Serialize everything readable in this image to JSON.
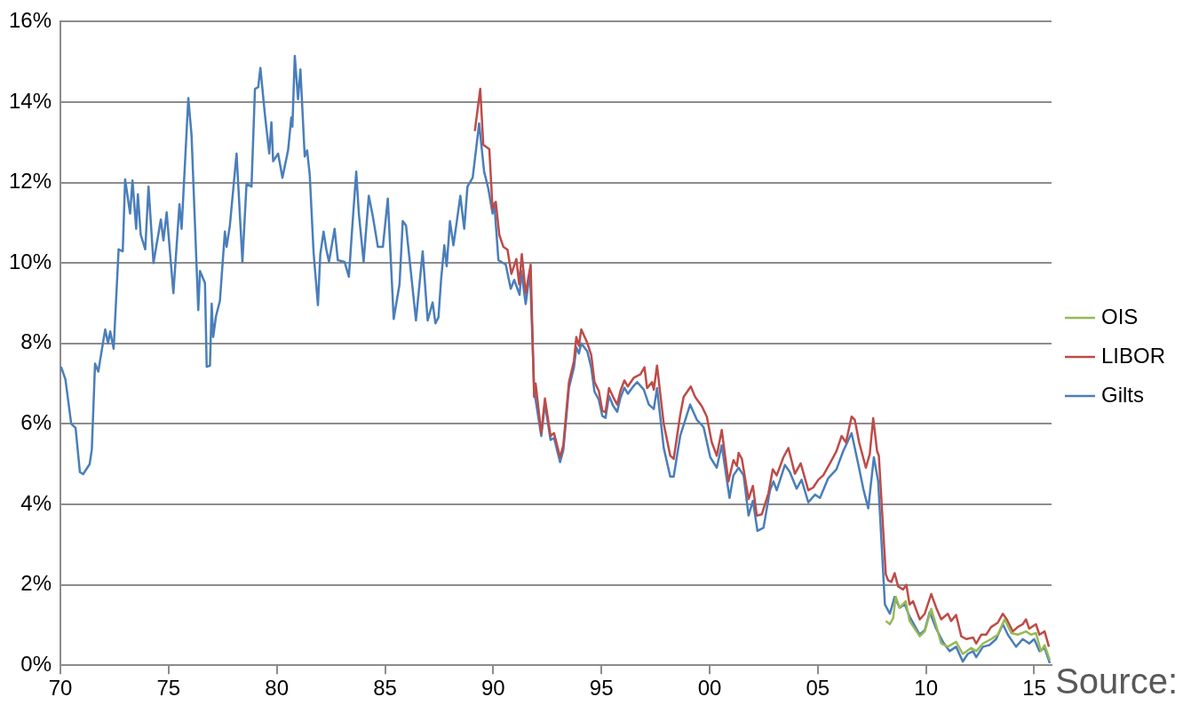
{
  "chart_data": {
    "type": "line",
    "xlim": [
      1970,
      2015.8
    ],
    "xticks": [
      {
        "value": 1970,
        "label": "70"
      },
      {
        "value": 1975,
        "label": "75"
      },
      {
        "value": 1980,
        "label": "80"
      },
      {
        "value": 1985,
        "label": "85"
      },
      {
        "value": 1990,
        "label": "90"
      },
      {
        "value": 1995,
        "label": "95"
      },
      {
        "value": 2000,
        "label": "00"
      },
      {
        "value": 2005,
        "label": "05"
      },
      {
        "value": 2010,
        "label": "10"
      },
      {
        "value": 2015,
        "label": "15"
      }
    ],
    "ylim": [
      0,
      16
    ],
    "yticks": [
      {
        "value": 0,
        "label": "0%"
      },
      {
        "value": 2,
        "label": "2%"
      },
      {
        "value": 4,
        "label": "4%"
      },
      {
        "value": 6,
        "label": "6%"
      },
      {
        "value": 8,
        "label": "8%"
      },
      {
        "value": 10,
        "label": "10%"
      },
      {
        "value": 12,
        "label": "12%"
      },
      {
        "value": 14,
        "label": "14%"
      },
      {
        "value": 16,
        "label": "16%"
      }
    ],
    "grid": "y",
    "legend": "right",
    "marker": "none",
    "line_style": "solid",
    "annotations": [
      "Source:"
    ],
    "series": [
      {
        "name": "Gilts",
        "color": "#4a7ebb",
        "x": [
          1970.03,
          1970.23,
          1970.5,
          1970.7,
          1970.9,
          1971.05,
          1971.35,
          1971.45,
          1971.6,
          1971.75,
          1971.9,
          1972.07,
          1972.2,
          1972.3,
          1972.46,
          1972.69,
          1972.88,
          1972.99,
          1973.22,
          1973.33,
          1973.5,
          1973.58,
          1973.71,
          1973.92,
          1974.07,
          1974.3,
          1974.64,
          1974.76,
          1974.91,
          1975.22,
          1975.5,
          1975.6,
          1975.91,
          1976.06,
          1976.37,
          1976.45,
          1976.68,
          1976.76,
          1976.91,
          1976.99,
          1977.06,
          1977.19,
          1977.37,
          1977.6,
          1977.68,
          1977.83,
          1978.14,
          1978.41,
          1978.6,
          1978.83,
          1978.99,
          1979.14,
          1979.24,
          1979.45,
          1979.65,
          1979.75,
          1979.83,
          1980.06,
          1980.26,
          1980.52,
          1980.67,
          1980.72,
          1980.83,
          1980.98,
          1981.09,
          1981.29,
          1981.4,
          1981.52,
          1981.7,
          1981.9,
          1982.01,
          1982.16,
          1982.29,
          1982.41,
          1982.67,
          1982.82,
          1983.13,
          1983.33,
          1983.52,
          1983.67,
          1983.79,
          1984.01,
          1984.25,
          1984.44,
          1984.67,
          1984.9,
          1985.13,
          1985.4,
          1985.67,
          1985.82,
          1985.97,
          1986.43,
          1986.74,
          1986.97,
          1987.2,
          1987.33,
          1987.47,
          1987.59,
          1987.74,
          1987.85,
          1988.0,
          1988.16,
          1988.28,
          1988.48,
          1988.66,
          1988.81,
          1989.05,
          1989.35,
          1989.58,
          1989.77,
          1989.97,
          1990.05,
          1990.24,
          1990.58,
          1990.81,
          1990.97,
          1991.22,
          1991.3,
          1991.5,
          1991.7,
          1991.89,
          1991.96,
          1992.22,
          1992.39,
          1992.65,
          1992.81,
          1993.09,
          1993.24,
          1993.5,
          1993.73,
          1993.84,
          1993.96,
          1994.07,
          1994.35,
          1994.53,
          1994.68,
          1994.88,
          1995.04,
          1995.19,
          1995.35,
          1995.54,
          1995.73,
          1995.88,
          1996.06,
          1996.22,
          1996.5,
          1996.65,
          1996.96,
          1997.19,
          1997.42,
          1997.57,
          1997.88,
          1998.18,
          1998.34,
          1998.64,
          1999.1,
          1999.41,
          1999.72,
          2000.03,
          2000.33,
          2000.56,
          2000.92,
          2001.1,
          2001.34,
          2001.57,
          2001.8,
          2002.0,
          2002.21,
          2002.49,
          2002.79,
          2002.95,
          2003.1,
          2003.48,
          2003.71,
          2004.02,
          2004.25,
          2004.56,
          2004.87,
          2005.1,
          2005.48,
          2005.86,
          2006.17,
          2006.56,
          2006.86,
          2007.1,
          2007.33,
          2007.59,
          2007.79,
          2008.1,
          2008.33,
          2008.55,
          2008.78,
          2009.02,
          2009.24,
          2009.47,
          2009.71,
          2009.94,
          2010.17,
          2010.47,
          2010.78,
          2011.09,
          2011.39,
          2011.7,
          2011.93,
          2012.17,
          2012.32,
          2012.63,
          2012.93,
          2013.24,
          2013.55,
          2013.78,
          2014.16,
          2014.47,
          2014.77,
          2015.0,
          2015.24,
          2015.48,
          2015.72
        ],
        "values": [
          7.42,
          7.11,
          6.0,
          5.9,
          4.8,
          4.75,
          5.0,
          5.36,
          7.5,
          7.3,
          7.8,
          8.35,
          8.0,
          8.3,
          7.87,
          10.34,
          10.29,
          12.08,
          11.23,
          12.05,
          10.85,
          11.71,
          10.7,
          10.34,
          11.9,
          10.0,
          11.08,
          10.56,
          11.26,
          9.25,
          11.46,
          10.85,
          14.1,
          13.17,
          8.83,
          9.8,
          9.5,
          7.42,
          7.45,
          8.99,
          8.16,
          8.68,
          9.06,
          10.78,
          10.4,
          10.93,
          12.72,
          10.03,
          11.97,
          11.9,
          14.33,
          14.37,
          14.85,
          13.69,
          12.72,
          13.5,
          12.53,
          12.72,
          12.12,
          12.8,
          13.62,
          13.39,
          15.15,
          14.07,
          14.81,
          12.65,
          12.8,
          12.2,
          10.25,
          8.95,
          10.22,
          10.78,
          10.33,
          10.03,
          10.85,
          10.07,
          10.03,
          9.66,
          11.15,
          12.27,
          11.23,
          10.03,
          11.67,
          11.15,
          10.4,
          10.4,
          11.6,
          8.61,
          9.47,
          11.04,
          10.93,
          8.57,
          10.29,
          8.57,
          9.02,
          8.5,
          8.65,
          9.58,
          10.44,
          9.92,
          11.04,
          10.44,
          10.89,
          11.67,
          10.85,
          11.9,
          12.12,
          13.47,
          12.27,
          11.86,
          11.23,
          11.49,
          10.07,
          9.96,
          9.36,
          9.58,
          9.21,
          9.8,
          8.98,
          9.8,
          6.89,
          6.6,
          5.7,
          6.5,
          5.6,
          5.65,
          5.05,
          5.35,
          6.9,
          7.4,
          7.9,
          7.75,
          8.0,
          7.8,
          7.4,
          6.8,
          6.6,
          6.2,
          6.15,
          6.7,
          6.45,
          6.3,
          6.65,
          6.9,
          6.75,
          6.95,
          7.04,
          6.85,
          6.48,
          6.37,
          6.89,
          5.4,
          4.69,
          4.69,
          5.7,
          6.48,
          6.1,
          5.92,
          5.17,
          4.91,
          5.47,
          4.16,
          4.72,
          4.91,
          4.72,
          3.72,
          4.09,
          3.34,
          3.42,
          4.35,
          4.57,
          4.35,
          4.98,
          4.8,
          4.39,
          4.61,
          4.05,
          4.24,
          4.16,
          4.65,
          4.87,
          5.32,
          5.77,
          5.02,
          4.39,
          3.9,
          5.17,
          4.57,
          1.51,
          1.28,
          1.7,
          1.43,
          1.51,
          1.21,
          0.99,
          0.76,
          0.87,
          1.32,
          0.91,
          0.58,
          0.35,
          0.46,
          0.09,
          0.28,
          0.35,
          0.2,
          0.46,
          0.5,
          0.65,
          1.02,
          0.76,
          0.46,
          0.65,
          0.54,
          0.65,
          0.35,
          0.43,
          0.05
        ]
      },
      {
        "name": "LIBOR",
        "color": "#be4b48",
        "x": [
          1989.15,
          1989.4,
          1989.54,
          1989.82,
          1989.97,
          1990.12,
          1990.28,
          1990.47,
          1990.66,
          1990.84,
          1991.07,
          1991.2,
          1991.32,
          1991.5,
          1991.73,
          1991.89,
          1991.96,
          1992.22,
          1992.39,
          1992.65,
          1992.81,
          1993.09,
          1993.24,
          1993.5,
          1993.73,
          1993.84,
          1993.96,
          1994.07,
          1994.35,
          1994.53,
          1994.68,
          1994.88,
          1995.04,
          1995.19,
          1995.35,
          1995.54,
          1995.73,
          1995.88,
          1996.06,
          1996.22,
          1996.5,
          1996.8,
          1996.99,
          1997.11,
          1997.34,
          1997.42,
          1997.57,
          1997.88,
          1998.18,
          1998.34,
          1998.64,
          1998.8,
          1999.13,
          1999.33,
          1999.64,
          1999.87,
          2000.1,
          2000.33,
          2000.56,
          2000.87,
          2001.1,
          2001.26,
          2001.34,
          2001.49,
          2001.8,
          2002.0,
          2002.18,
          2002.41,
          2002.72,
          2002.92,
          2003.1,
          2003.41,
          2003.64,
          2003.94,
          2004.21,
          2004.56,
          2004.79,
          2005.02,
          2005.25,
          2005.56,
          2005.86,
          2006.1,
          2006.3,
          2006.56,
          2006.71,
          2006.91,
          2007.22,
          2007.4,
          2007.56,
          2007.74,
          2007.82,
          2008.14,
          2008.25,
          2008.4,
          2008.55,
          2008.71,
          2008.94,
          2009.09,
          2009.24,
          2009.4,
          2009.71,
          2009.94,
          2010.24,
          2010.47,
          2010.7,
          2011.01,
          2011.16,
          2011.39,
          2011.63,
          2011.86,
          2012.17,
          2012.32,
          2012.55,
          2012.78,
          2013.01,
          2013.32,
          2013.55,
          2013.73,
          2014.01,
          2014.24,
          2014.47,
          2014.62,
          2014.77,
          2015.08,
          2015.24,
          2015.48,
          2015.68
        ],
        "values": [
          13.28,
          14.33,
          12.94,
          12.83,
          11.34,
          11.52,
          10.7,
          10.4,
          10.33,
          9.73,
          10.1,
          9.47,
          10.22,
          9.25,
          9.96,
          6.67,
          7.0,
          5.77,
          6.63,
          5.7,
          5.77,
          5.17,
          5.47,
          7.04,
          7.56,
          8.16,
          7.94,
          8.35,
          8.01,
          7.71,
          7.04,
          6.82,
          6.33,
          6.29,
          6.89,
          6.67,
          6.48,
          6.82,
          7.08,
          6.93,
          7.15,
          7.23,
          7.41,
          6.89,
          7.04,
          6.85,
          7.45,
          6.0,
          5.21,
          5.13,
          6.22,
          6.67,
          6.93,
          6.67,
          6.44,
          6.18,
          5.54,
          5.21,
          5.85,
          4.57,
          5.1,
          4.95,
          5.28,
          5.13,
          4.13,
          4.46,
          3.72,
          3.75,
          4.28,
          4.87,
          4.72,
          5.17,
          5.4,
          4.76,
          5.02,
          4.35,
          4.42,
          4.61,
          4.72,
          5.02,
          5.32,
          5.7,
          5.54,
          6.18,
          6.1,
          5.54,
          4.91,
          5.25,
          6.14,
          5.32,
          5.21,
          2.26,
          2.11,
          2.07,
          2.29,
          1.96,
          1.88,
          2.0,
          1.51,
          1.59,
          1.14,
          1.28,
          1.77,
          1.43,
          1.14,
          1.28,
          1.1,
          1.25,
          0.72,
          0.65,
          0.69,
          0.54,
          0.76,
          0.76,
          0.95,
          1.06,
          1.28,
          1.14,
          0.84,
          0.95,
          1.02,
          1.14,
          0.91,
          1.02,
          0.76,
          0.84,
          0.46
        ]
      },
      {
        "name": "OIS",
        "color": "#98b954",
        "x": [
          2008.14,
          2008.33,
          2008.48,
          2008.6,
          2008.78,
          2009.06,
          2009.24,
          2009.71,
          2009.94,
          2010.24,
          2010.47,
          2010.7,
          2011.01,
          2011.39,
          2011.7,
          2012.09,
          2012.32,
          2012.63,
          2013.01,
          2013.32,
          2013.63,
          2013.94,
          2014.24,
          2014.62,
          2014.85,
          2015.08,
          2015.31,
          2015.48,
          2015.72
        ],
        "values": [
          1.1,
          1.02,
          1.17,
          1.7,
          1.43,
          1.59,
          1.1,
          0.72,
          0.84,
          1.4,
          0.99,
          0.54,
          0.46,
          0.58,
          0.28,
          0.43,
          0.35,
          0.54,
          0.65,
          0.76,
          1.14,
          0.8,
          0.76,
          0.84,
          0.76,
          0.8,
          0.35,
          0.5,
          0.13
        ]
      }
    ]
  }
}
